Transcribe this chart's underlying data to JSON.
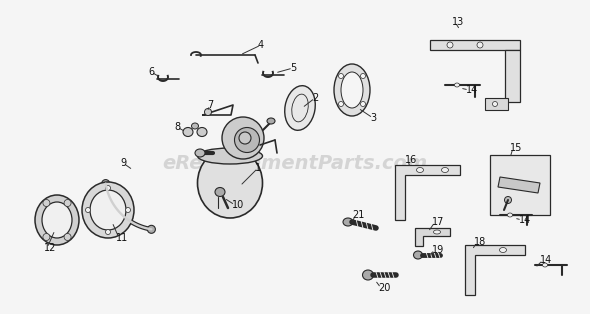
{
  "bg_color": "#f5f5f5",
  "watermark_text": "eReplacementParts.com",
  "watermark_color": [
    0.75,
    0.75,
    0.75
  ],
  "watermark_fontsize": 14,
  "watermark_alpha": 0.6,
  "label_fontsize": 7,
  "label_color": "#111111",
  "part_color": "#2a2a2a",
  "line_color": "#333333",
  "lw_base": 0.9,
  "fig_w": 5.9,
  "fig_h": 3.14,
  "dpi": 100
}
